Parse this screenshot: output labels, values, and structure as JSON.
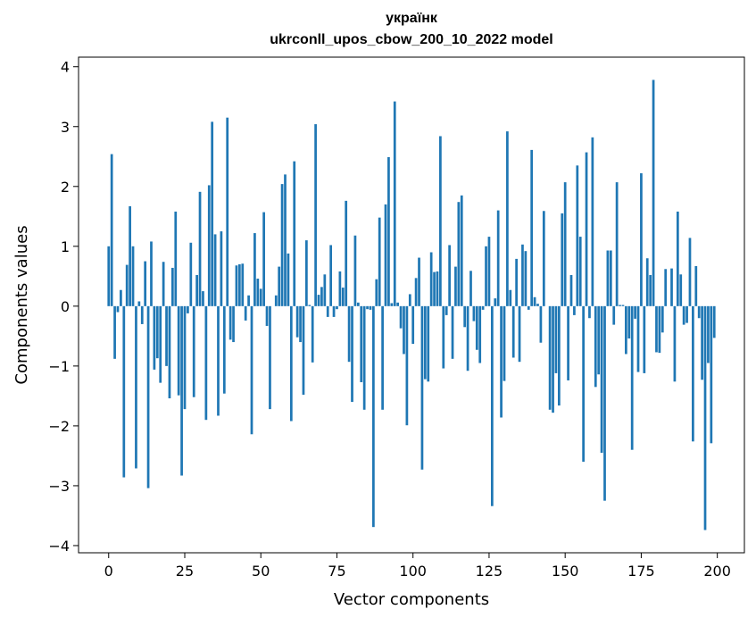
{
  "chart_data": {
    "type": "bar",
    "title": "українк",
    "subtitle": "ukrconll_upos_cbow_200_10_2022 model",
    "xlabel": "Vector components",
    "ylabel": "Components values",
    "xlim": [
      -9.9,
      208.9
    ],
    "ylim": [
      -4.12,
      4.16
    ],
    "xticks": [
      0,
      25,
      50,
      75,
      100,
      125,
      150,
      175,
      200
    ],
    "yticks": [
      -4,
      -3,
      -2,
      -1,
      0,
      1,
      2,
      3,
      4
    ],
    "bar_color": "#1f77b4",
    "grid": false,
    "x": [
      0,
      1,
      2,
      3,
      4,
      5,
      6,
      7,
      8,
      9,
      10,
      11,
      12,
      13,
      14,
      15,
      16,
      17,
      18,
      19,
      20,
      21,
      22,
      23,
      24,
      25,
      26,
      27,
      28,
      29,
      30,
      31,
      32,
      33,
      34,
      35,
      36,
      37,
      38,
      39,
      40,
      41,
      42,
      43,
      44,
      45,
      46,
      47,
      48,
      49,
      50,
      51,
      52,
      53,
      54,
      55,
      56,
      57,
      58,
      59,
      60,
      61,
      62,
      63,
      64,
      65,
      66,
      67,
      68,
      69,
      70,
      71,
      72,
      73,
      74,
      75,
      76,
      77,
      78,
      79,
      80,
      81,
      82,
      83,
      84,
      85,
      86,
      87,
      88,
      89,
      90,
      91,
      92,
      93,
      94,
      95,
      96,
      97,
      98,
      99,
      100,
      101,
      102,
      103,
      104,
      105,
      106,
      107,
      108,
      109,
      110,
      111,
      112,
      113,
      114,
      115,
      116,
      117,
      118,
      119,
      120,
      121,
      122,
      123,
      124,
      125,
      126,
      127,
      128,
      129,
      130,
      131,
      132,
      133,
      134,
      135,
      136,
      137,
      138,
      139,
      140,
      141,
      142,
      143,
      144,
      145,
      146,
      147,
      148,
      149,
      150,
      151,
      152,
      153,
      154,
      155,
      156,
      157,
      158,
      159,
      160,
      161,
      162,
      163,
      164,
      165,
      166,
      167,
      168,
      169,
      170,
      171,
      172,
      173,
      174,
      175,
      176,
      177,
      178,
      179,
      180,
      181,
      182,
      183,
      184,
      185,
      186,
      187,
      188,
      189,
      190,
      191,
      192,
      193,
      194,
      195,
      196,
      197,
      198,
      199
    ],
    "values": [
      1.0,
      2.54,
      -0.88,
      -0.1,
      0.27,
      -2.86,
      0.69,
      1.67,
      1.0,
      -2.71,
      0.08,
      -0.3,
      0.75,
      -3.04,
      1.08,
      -1.06,
      -0.87,
      -1.28,
      0.74,
      -1.0,
      -1.54,
      0.64,
      1.58,
      -1.49,
      -2.83,
      -1.72,
      -0.12,
      1.06,
      -1.52,
      0.52,
      1.91,
      0.25,
      -1.9,
      2.02,
      3.08,
      1.2,
      -1.83,
      1.25,
      -1.46,
      3.15,
      -0.56,
      -0.6,
      0.68,
      0.7,
      0.71,
      -0.24,
      0.18,
      -2.14,
      1.22,
      0.46,
      0.29,
      1.57,
      -0.33,
      -1.72,
      0.0,
      0.18,
      0.66,
      2.04,
      2.2,
      0.88,
      -1.92,
      2.42,
      -0.52,
      -0.6,
      -1.48,
      1.1,
      0.02,
      -0.94,
      3.04,
      0.19,
      0.32,
      0.53,
      -0.18,
      1.02,
      -0.18,
      -0.05,
      0.58,
      0.31,
      1.76,
      -0.93,
      -1.6,
      1.18,
      0.06,
      -1.27,
      -1.73,
      -0.05,
      -0.06,
      -3.69,
      0.45,
      1.48,
      -1.73,
      1.7,
      2.49,
      0.05,
      3.42,
      0.06,
      -0.37,
      -0.8,
      -1.99,
      0.2,
      -0.63,
      0.47,
      0.81,
      -2.73,
      -1.22,
      -1.26,
      0.9,
      0.57,
      0.58,
      2.84,
      -1.04,
      -0.15,
      1.02,
      -0.88,
      0.66,
      1.74,
      1.85,
      -0.35,
      -1.08,
      0.59,
      -0.25,
      -0.73,
      -0.95,
      -0.06,
      1.0,
      1.16,
      -3.34,
      0.13,
      1.6,
      -1.86,
      -1.25,
      2.92,
      0.27,
      -0.86,
      0.79,
      -0.93,
      1.03,
      0.92,
      -0.06,
      2.61,
      0.15,
      0.04,
      -0.61,
      1.59,
      0.0,
      -1.73,
      -1.78,
      -1.12,
      -1.66,
      1.55,
      2.07,
      -1.24,
      0.52,
      -0.15,
      2.35,
      1.16,
      -2.6,
      2.57,
      -0.2,
      2.82,
      -1.35,
      -1.14,
      -2.45,
      -3.25,
      0.93,
      0.93,
      -0.31,
      2.07,
      0.02,
      0.02,
      -0.8,
      -0.54,
      -2.4,
      -0.21,
      -1.1,
      2.22,
      -1.12,
      0.8,
      0.52,
      3.78,
      -0.77,
      -0.78,
      -0.44,
      0.62,
      0.0,
      0.63,
      -1.26,
      1.58,
      0.53,
      -0.31,
      -0.28,
      1.14,
      -2.26,
      0.67,
      -0.2,
      -1.23,
      -3.74,
      -0.95,
      -2.29,
      -0.53
    ]
  }
}
